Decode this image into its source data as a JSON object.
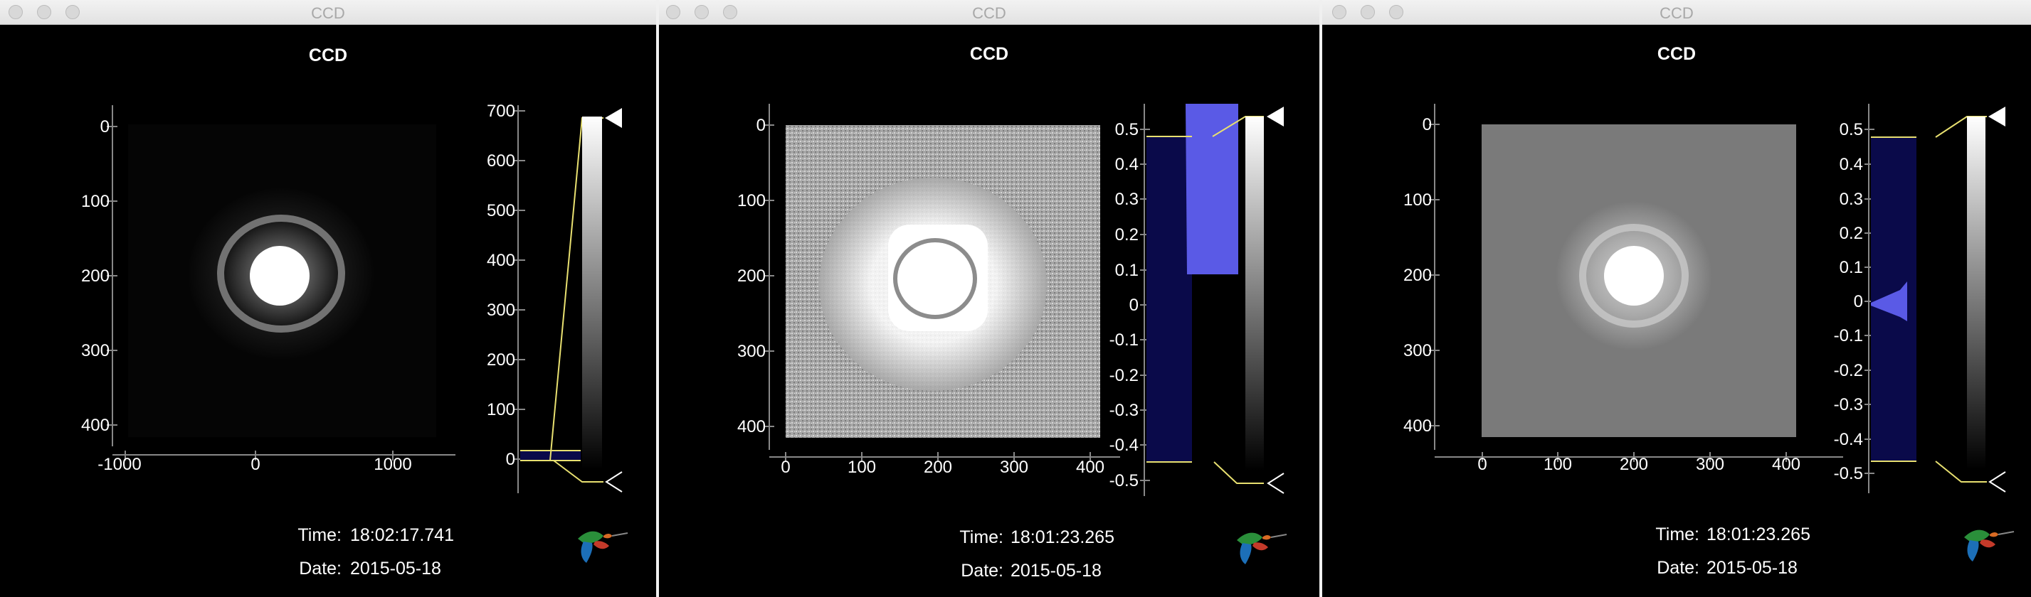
{
  "windows": [
    {
      "window_title": "CCD",
      "plot_title": "CCD",
      "time_label": "Time:",
      "time_value": "18:02:17.741",
      "date_label": "Date:",
      "date_value": "2015-05-18",
      "image_x_ticks": [
        "-1000",
        "0",
        "1000"
      ],
      "image_y_ticks": [
        "0",
        "100",
        "200",
        "300",
        "400"
      ],
      "hist_ticks": [
        "700",
        "600",
        "500",
        "400",
        "300",
        "200",
        "100",
        "0"
      ],
      "colors": {
        "background": "#000000",
        "histogram_fill": "#0a0a4a",
        "hist_peak": "#5a5ae6",
        "level_line": "#e8e070"
      },
      "icons": [
        "hummingbird-logo-icon",
        "level-max-triangle-icon",
        "level-min-triangle-icon"
      ]
    },
    {
      "window_title": "CCD",
      "plot_title": "CCD",
      "time_label": "Time:",
      "time_value": "18:01:23.265",
      "date_label": "Date:",
      "date_value": "2015-05-18",
      "image_x_ticks": [
        "0",
        "100",
        "200",
        "300",
        "400"
      ],
      "image_y_ticks": [
        "0",
        "100",
        "200",
        "300",
        "400"
      ],
      "hist_ticks": [
        "0.5",
        "0.4",
        "0.3",
        "0.2",
        "0.1",
        "0",
        "-0.1",
        "-0.2",
        "-0.3",
        "-0.4",
        "-0.5"
      ],
      "colors": {
        "background": "#000000",
        "histogram_fill": "#0a0a4a",
        "hist_peak": "#5a5ae6",
        "level_line": "#e8e070"
      },
      "icons": [
        "hummingbird-logo-icon",
        "level-max-triangle-icon",
        "level-min-triangle-icon"
      ]
    },
    {
      "window_title": "CCD",
      "plot_title": "CCD",
      "time_label": "Time:",
      "time_value": "18:01:23.265",
      "date_label": "Date:",
      "date_value": "2015-05-18",
      "image_x_ticks": [
        "0",
        "100",
        "200",
        "300",
        "400"
      ],
      "image_y_ticks": [
        "0",
        "100",
        "200",
        "300",
        "400"
      ],
      "hist_ticks": [
        "0.5",
        "0.4",
        "0.3",
        "0.2",
        "0.1",
        "0",
        "-0.1",
        "-0.2",
        "-0.3",
        "-0.4",
        "-0.5"
      ],
      "colors": {
        "background": "#000000",
        "histogram_fill": "#0a0a4a",
        "hist_peak": "#5a5ae6",
        "level_line": "#e8e070"
      },
      "icons": [
        "hummingbird-logo-icon",
        "level-max-triangle-icon",
        "level-min-triangle-icon"
      ]
    }
  ]
}
